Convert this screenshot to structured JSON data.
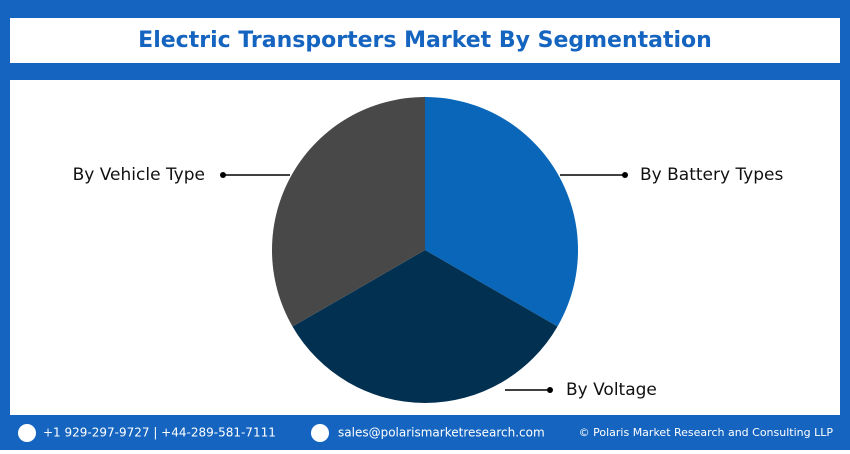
{
  "chart_data": {
    "type": "pie",
    "title": "Electric Transporters Market By Segmentation",
    "categories": [
      "By Battery Types",
      "By Voltage",
      "By Vehicle Type"
    ],
    "values": [
      33.3,
      33.3,
      33.3
    ],
    "colors": [
      "#0a66b8",
      "#023050",
      "#484848"
    ]
  },
  "footer": {
    "phone": "+1 929-297-9727 | +44-289-581-7111",
    "email": "sales@polarismarketresearch.com",
    "copyright": "© Polaris Market Research and Consulting LLP"
  }
}
